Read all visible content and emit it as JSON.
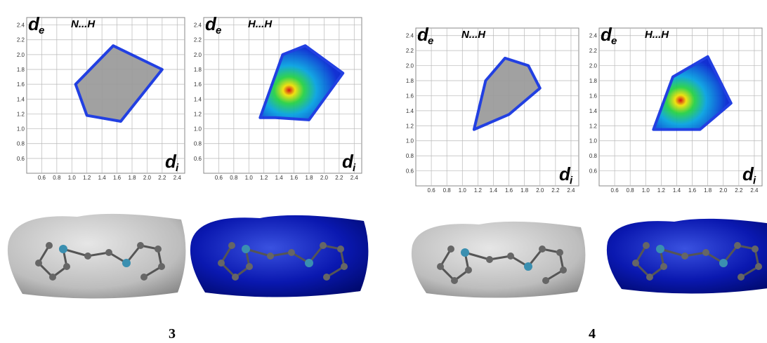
{
  "ticks": [
    "0.6",
    "0.8",
    "1.0",
    "1.2",
    "1.4",
    "1.6",
    "1.8",
    "2.0",
    "2.2",
    "2.4"
  ],
  "plots": [
    {
      "title": "N...H",
      "y_axis": {
        "symbol": "d",
        "subscript": "e"
      },
      "x_axis": {
        "symbol": "d",
        "subscript": "i"
      }
    },
    {
      "title": "H...H",
      "y_axis": {
        "symbol": "d",
        "subscript": "e"
      },
      "x_axis": {
        "symbol": "d",
        "subscript": "i"
      }
    },
    {
      "title": "N...H",
      "y_axis": {
        "symbol": "d",
        "subscript": "e"
      },
      "x_axis": {
        "symbol": "d",
        "subscript": "i"
      }
    },
    {
      "title": "H...H",
      "y_axis": {
        "symbol": "d",
        "subscript": "e"
      },
      "x_axis": {
        "symbol": "d",
        "subscript": "i"
      }
    }
  ],
  "compound_labels": [
    "3",
    "4"
  ]
}
